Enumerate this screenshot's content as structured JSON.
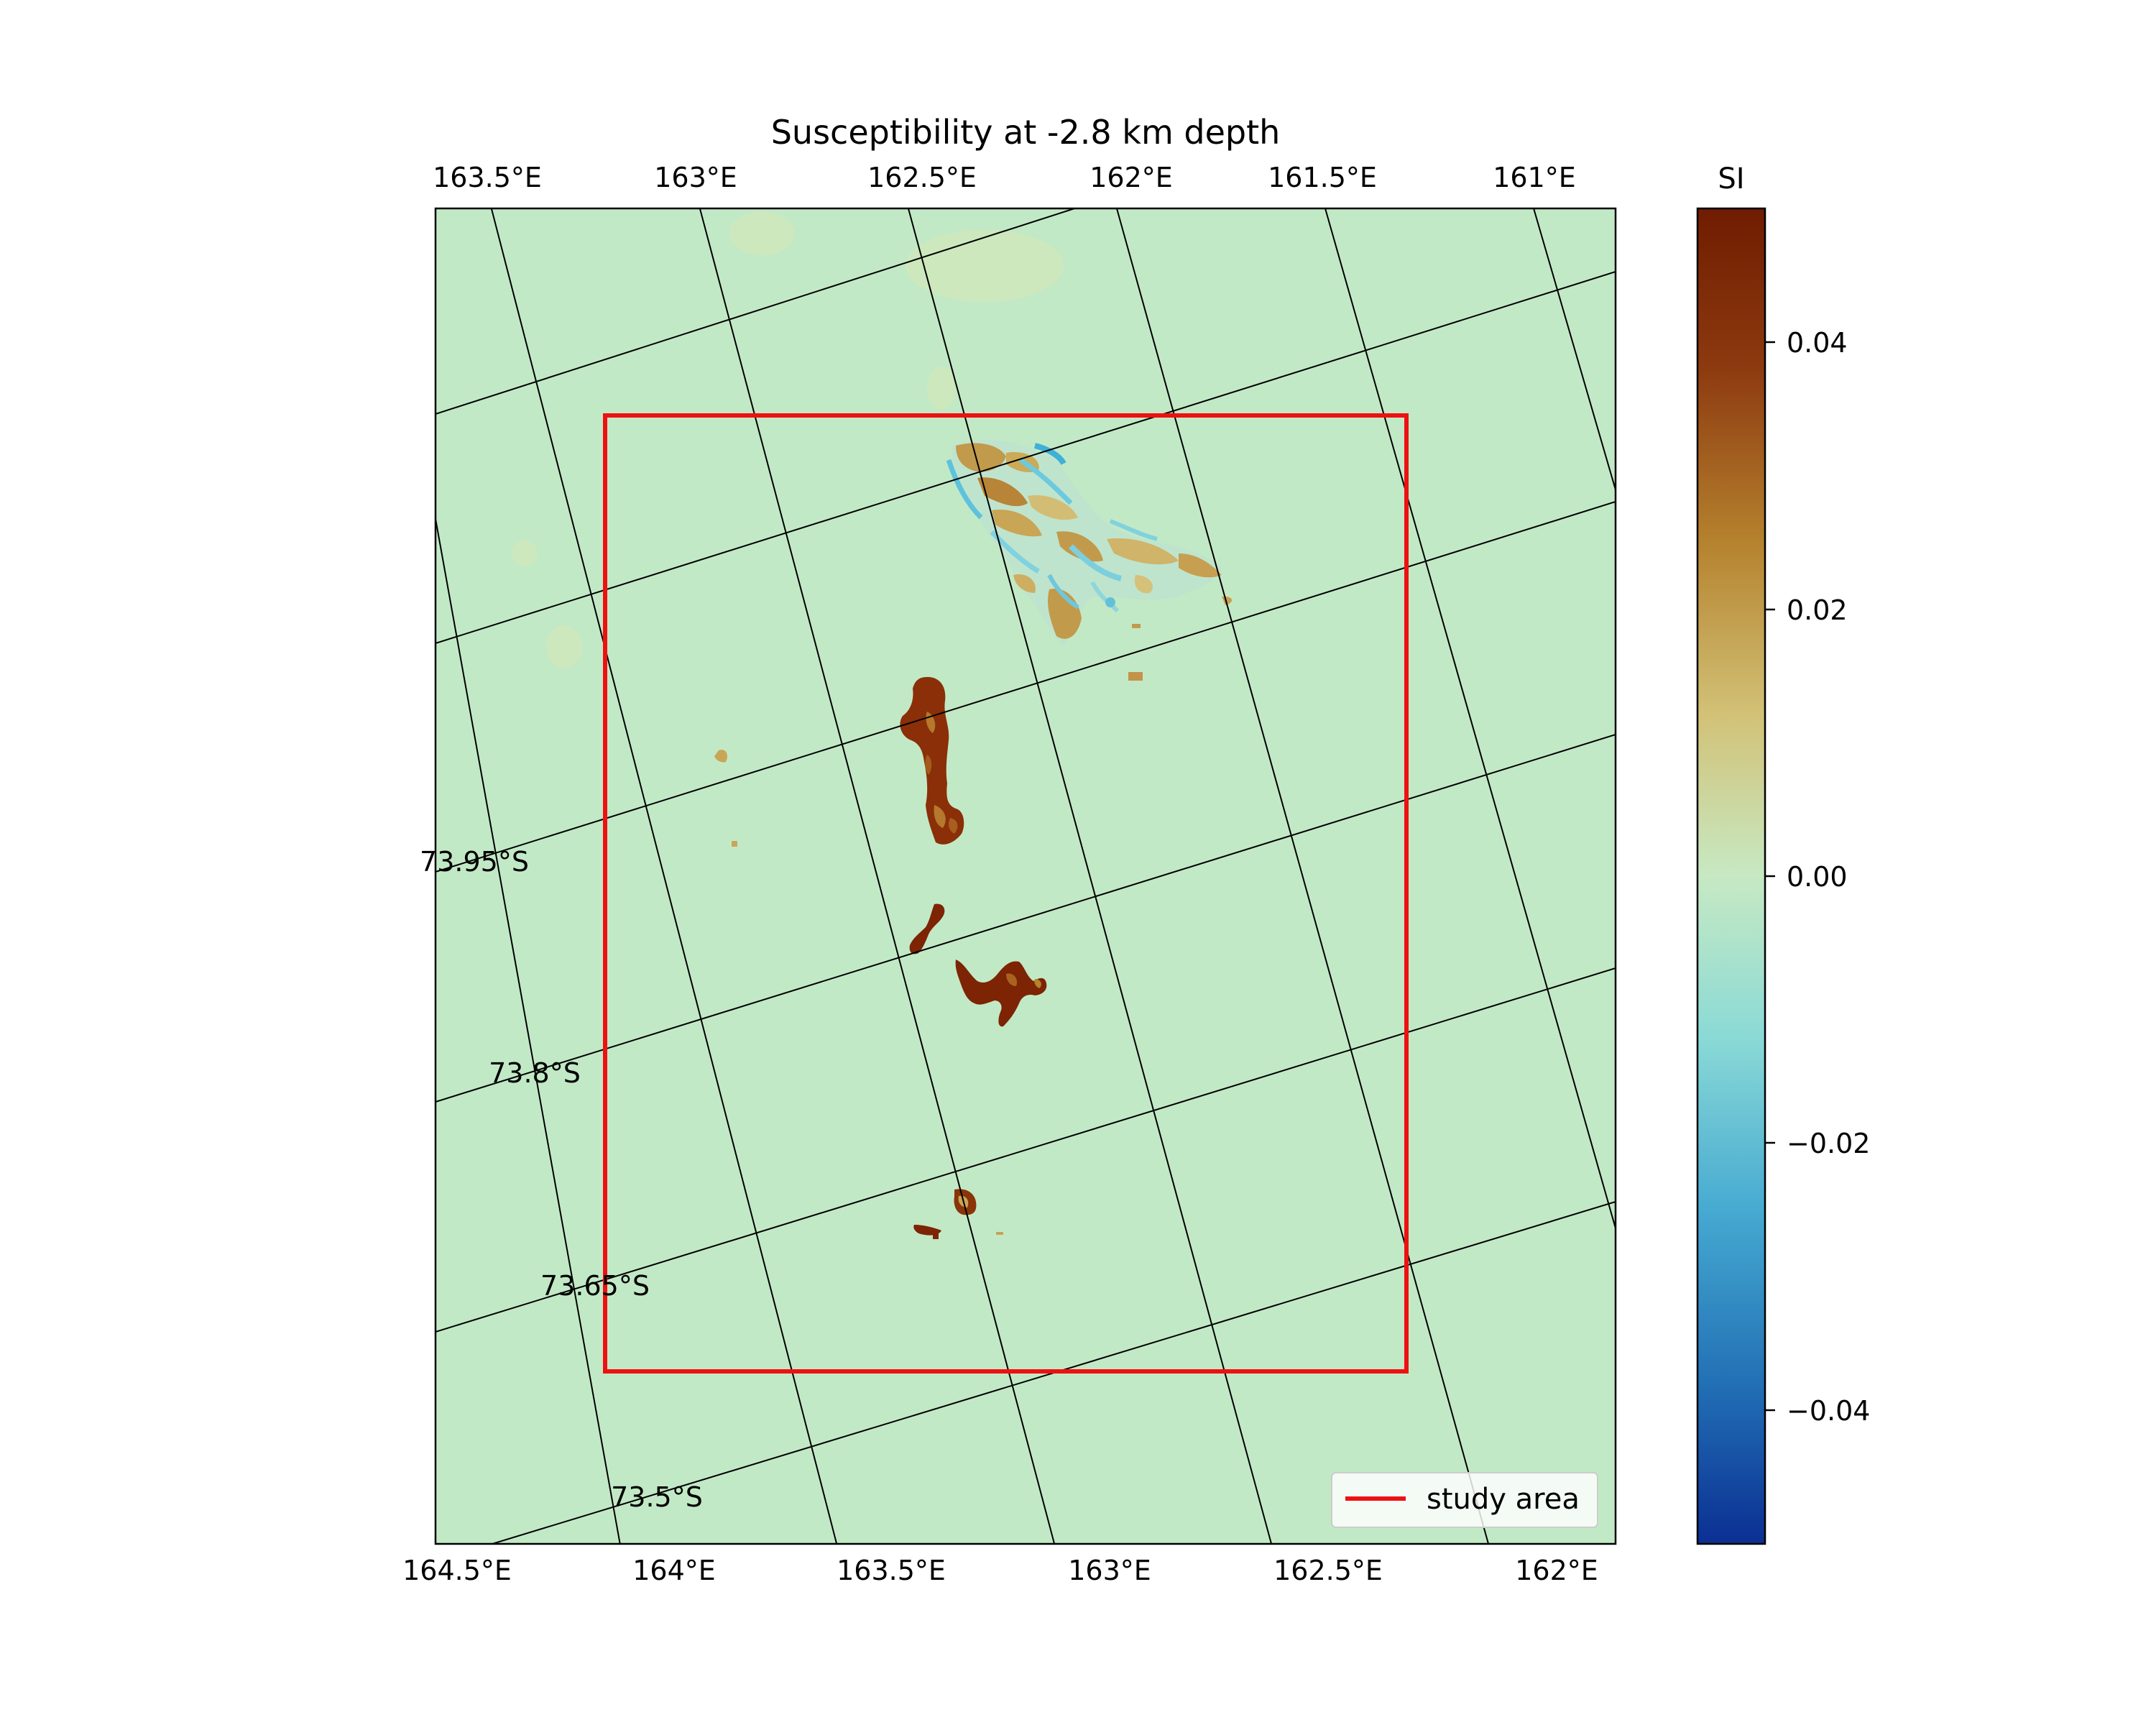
{
  "map": {
    "title": "Susceptibility at -2.8 km depth",
    "top_lon_labels": [
      "163.5°E",
      "163°E",
      "162.5°E",
      "162°E",
      "161.5°E",
      "161°E"
    ],
    "bottom_lon_labels": [
      "164.5°E",
      "164°E",
      "163.5°E",
      "163°E",
      "162.5°E",
      "162°E"
    ],
    "lat_labels": [
      "73.95°S",
      "73.8°S",
      "73.65°S",
      "73.5°S"
    ],
    "background_color": "#c2e9c6",
    "study_area_color": "#ee1111",
    "legend": {
      "label": "study area"
    }
  },
  "colorbar": {
    "title": "SI",
    "range": [
      -0.05,
      0.05
    ],
    "ticks": [
      "0.04",
      "0.02",
      "0.00",
      "−0.02",
      "−0.04"
    ],
    "colors": [
      "#6f1c01",
      "#8d3a10",
      "#b5822e",
      "#d2c277",
      "#c7e9c3",
      "#8bdad6",
      "#46aad1",
      "#2270b5",
      "#0b2f93"
    ]
  }
}
